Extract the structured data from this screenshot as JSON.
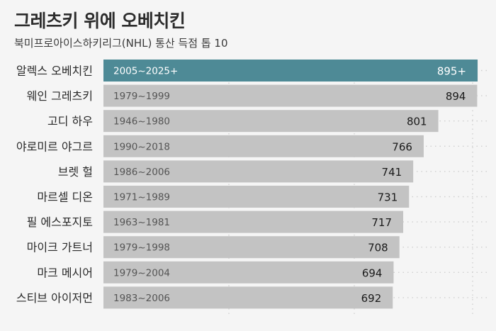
{
  "header": {
    "title": "그레츠키 위에 오베치킨",
    "subtitle": "북미프로아이스하키리그(NHL) 통산 득점 톱 10"
  },
  "colors": {
    "highlight": "#4e8a96",
    "bar": "#c3c3c3",
    "background": "#f5f5f5",
    "grid": "#d0d0d0"
  },
  "chart_data": {
    "type": "bar",
    "orientation": "horizontal",
    "categories": [
      "알렉스 오베치킨",
      "웨인 그레츠키",
      "고디 하우",
      "야로미르 야그르",
      "브렛 헐",
      "마르셀 디온",
      "필 에스포지토",
      "마이크 가트너",
      "마크 메시어",
      "스티브 아이저먼"
    ],
    "periods": [
      "2005~2025+",
      "1979~1999",
      "1946~1980",
      "1990~2018",
      "1986~2006",
      "1971~1989",
      "1963~1981",
      "1979~1998",
      "1979~2004",
      "1983~2006"
    ],
    "values": [
      895,
      894,
      801,
      766,
      741,
      731,
      717,
      708,
      694,
      692
    ],
    "value_labels": [
      "895+",
      "894",
      "801",
      "766",
      "741",
      "731",
      "717",
      "708",
      "694",
      "692"
    ],
    "highlight_index": 0,
    "xlim": [
      0,
      900
    ],
    "grid": true,
    "title": "그레츠키 위에 오베치킨",
    "xlabel": "",
    "ylabel": ""
  }
}
